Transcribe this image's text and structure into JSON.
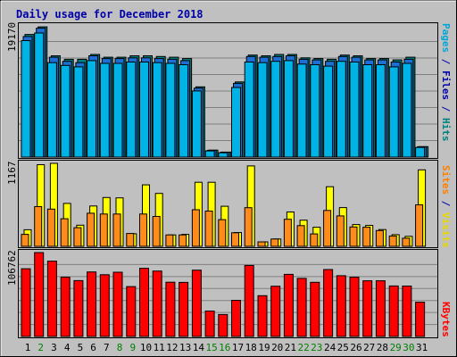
{
  "chart_data": [
    {
      "type": "bar",
      "title": "Daily usage for December 2018",
      "categories": [
        "1",
        "2",
        "3",
        "4",
        "5",
        "6",
        "7",
        "8",
        "9",
        "10",
        "11",
        "12",
        "13",
        "14",
        "15",
        "16",
        "17",
        "18",
        "19",
        "20",
        "21",
        "22",
        "23",
        "24",
        "25",
        "26",
        "27",
        "28",
        "29",
        "30",
        "31"
      ],
      "weekend_days": [
        "2",
        "8",
        "9",
        "15",
        "16",
        "22",
        "23",
        "29",
        "30"
      ],
      "ymax_label": "19170",
      "ylim": [
        0,
        19170
      ],
      "ylabel_parts": [
        {
          "text": "Pages",
          "color": "#00a6d6"
        },
        {
          "text": " / ",
          "color": "#0000a8"
        },
        {
          "text": "Files",
          "color": "#0000a8"
        },
        {
          "text": " / ",
          "color": "#0000a8"
        },
        {
          "text": "Hits",
          "color": "#008080"
        }
      ],
      "series": [
        {
          "name": "Hits",
          "color": "#008080",
          "values": [
            17800,
            18900,
            14700,
            14200,
            14200,
            14900,
            14500,
            14500,
            14700,
            14700,
            14600,
            14500,
            14300,
            10200,
            1010,
            730,
            10900,
            14800,
            14700,
            14900,
            14900,
            14400,
            14300,
            14200,
            14800,
            14700,
            14300,
            14300,
            14100,
            14500,
            1520
          ]
        },
        {
          "name": "Files",
          "color": "#1e6ed3",
          "values": [
            17500,
            18700,
            14500,
            13900,
            13700,
            14700,
            14300,
            14300,
            14400,
            14400,
            14300,
            14200,
            14000,
            10000,
            990,
            710,
            10700,
            14600,
            14500,
            14600,
            14700,
            14200,
            14100,
            13900,
            14600,
            14500,
            14100,
            14100,
            13800,
            14200,
            1500
          ]
        },
        {
          "name": "Pages",
          "color": "#00b3e6",
          "values": [
            16900,
            18000,
            13700,
            13300,
            13100,
            14000,
            13600,
            13600,
            13800,
            13800,
            13700,
            13600,
            13400,
            9600,
            900,
            620,
            10100,
            13800,
            13700,
            13900,
            14000,
            13500,
            13400,
            13200,
            13900,
            13800,
            13400,
            13400,
            13100,
            13600,
            1400
          ]
        }
      ]
    },
    {
      "type": "bar",
      "ymax_label": "1167",
      "ylim": [
        0,
        1167
      ],
      "ylabel_parts": [
        {
          "text": "Sites",
          "color": "#ff8000"
        },
        {
          "text": " / ",
          "color": "#0000a8"
        },
        {
          "text": "Visits",
          "color": "#e6d800"
        }
      ],
      "series": [
        {
          "name": "Visits",
          "color": "#ffff00",
          "values": [
            233,
            1148,
            1167,
            603,
            298,
            567,
            687,
            681,
            177,
            865,
            744,
            161,
            168,
            901,
            901,
            564,
            195,
            1131,
            63,
            103,
            483,
            368,
            269,
            838,
            545,
            306,
            295,
            236,
            164,
            140,
            1075
          ]
        },
        {
          "name": "Sites",
          "color": "#ff8c1a",
          "values": [
            168,
            558,
            523,
            388,
            262,
            466,
            454,
            454,
            181,
            454,
            420,
            161,
            161,
            514,
            496,
            375,
            191,
            543,
            63,
            103,
            380,
            291,
            175,
            505,
            428,
            272,
            269,
            222,
            146,
            114,
            584
          ]
        }
      ]
    },
    {
      "type": "bar",
      "ymax_label": "106762",
      "ylim": [
        0,
        106762
      ],
      "ylabel_parts": [
        {
          "text": "KBytes",
          "color": "#ff0000"
        }
      ],
      "series": [
        {
          "name": "KBytes",
          "color": "#ff0000",
          "values": [
            86200,
            106762,
            95900,
            75400,
            71100,
            82100,
            78600,
            81800,
            63500,
            86800,
            83200,
            69100,
            68800,
            84400,
            32400,
            27900,
            46000,
            90400,
            51900,
            64000,
            79000,
            73900,
            68900,
            85200,
            77300,
            75400,
            70900,
            70900,
            64300,
            64200,
            43600
          ]
        }
      ]
    }
  ]
}
